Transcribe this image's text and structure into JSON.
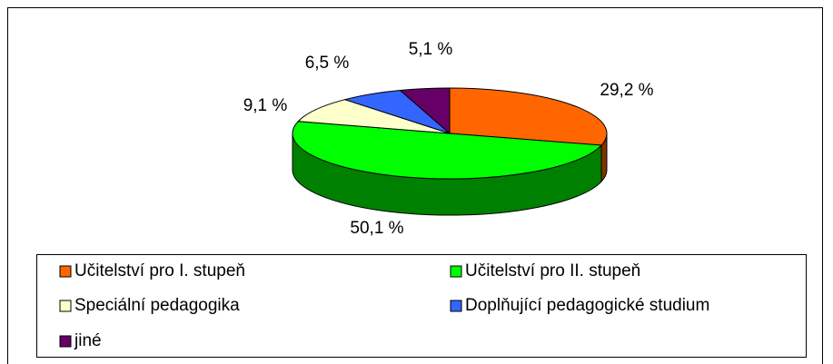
{
  "chart_data": {
    "type": "pie3d",
    "categories": [
      "Učitelství pro I. stupeň",
      "Učitelství pro II. stupeň",
      "Speciální pedagogika",
      "Doplňující pedagogické studium",
      "jiné"
    ],
    "values": [
      29.2,
      50.1,
      9.1,
      6.5,
      5.1
    ],
    "value_labels": [
      "29,2 %",
      "50,1 %",
      "9,1 %",
      "6,5 %",
      "5,1 %"
    ],
    "colors": [
      "#ff6600",
      "#00ff00",
      "#ffffcc",
      "#3366ff",
      "#660066"
    ],
    "legend": "bottom"
  }
}
